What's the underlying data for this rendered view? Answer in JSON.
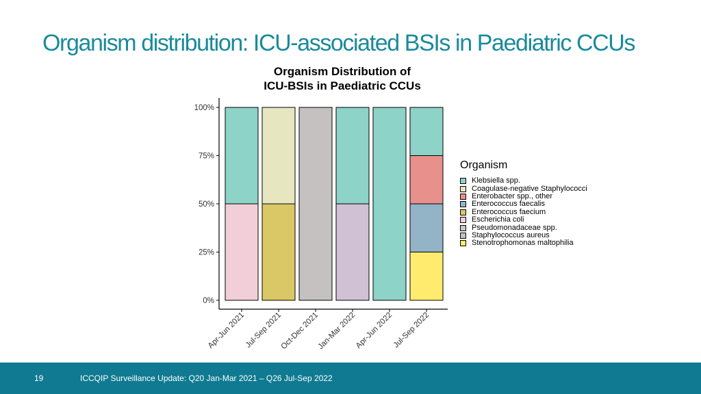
{
  "slide": {
    "title": "Organism distribution: ICU-associated BSIs in Paediatric CCUs",
    "page_number": "19",
    "footer_text": "ICCQIP Surveillance Update: Q20 Jan-Mar 2021 – Q26 Jul-Sep 2022",
    "accent_color": "#1a8a9c",
    "footer_color": "#0f7a91"
  },
  "chart_data": {
    "type": "bar",
    "stacked": true,
    "title_lines": [
      "Organism Distribution of",
      "ICU-BSIs in Paediatric CCUs"
    ],
    "xlabel": "",
    "ylabel": "",
    "ylim": [
      0,
      100
    ],
    "y_ticks": [
      "0%",
      "25%",
      "50%",
      "75%",
      "100%"
    ],
    "grid": false,
    "legend_title": "Organism",
    "legend_position": "right",
    "categories": [
      "Apr-Jun 2021",
      "Jul-Sep 2021",
      "Oct-Dec 2021",
      "Jan-Mar 2022",
      "Apr-Jun 2022",
      "Jul-Sep 2022"
    ],
    "series": [
      {
        "name": "Klebsiella spp.",
        "color": "#8dd3c7",
        "values": [
          50,
          0,
          0,
          50,
          100,
          25
        ]
      },
      {
        "name": "Coagulase-negative Staphylococci",
        "color": "#e6e7c1",
        "values": [
          0,
          50,
          0,
          0,
          0,
          0
        ]
      },
      {
        "name": "Enterobacter spp., other",
        "color": "#e8908c",
        "values": [
          0,
          0,
          0,
          0,
          0,
          25
        ]
      },
      {
        "name": "Enterococcus faecalis",
        "color": "#93b3c7",
        "values": [
          0,
          0,
          0,
          0,
          0,
          25
        ]
      },
      {
        "name": "Enterococcus faecium",
        "color": "#d9c865",
        "values": [
          0,
          50,
          0,
          0,
          0,
          0
        ]
      },
      {
        "name": "Escherichia coli",
        "color": "#f2cfd8",
        "values": [
          50,
          0,
          0,
          0,
          0,
          0
        ]
      },
      {
        "name": "Pseudomonadaceae spp.",
        "color": "#d0c1d4",
        "values": [
          0,
          0,
          0,
          50,
          0,
          0
        ]
      },
      {
        "name": "Staphylococcus aureus",
        "color": "#c5c1c1",
        "values": [
          0,
          0,
          100,
          0,
          0,
          0
        ]
      },
      {
        "name": "Stenotrophomonas maltophilia",
        "color": "#ffeb6e",
        "values": [
          0,
          0,
          0,
          0,
          0,
          25
        ]
      }
    ]
  }
}
